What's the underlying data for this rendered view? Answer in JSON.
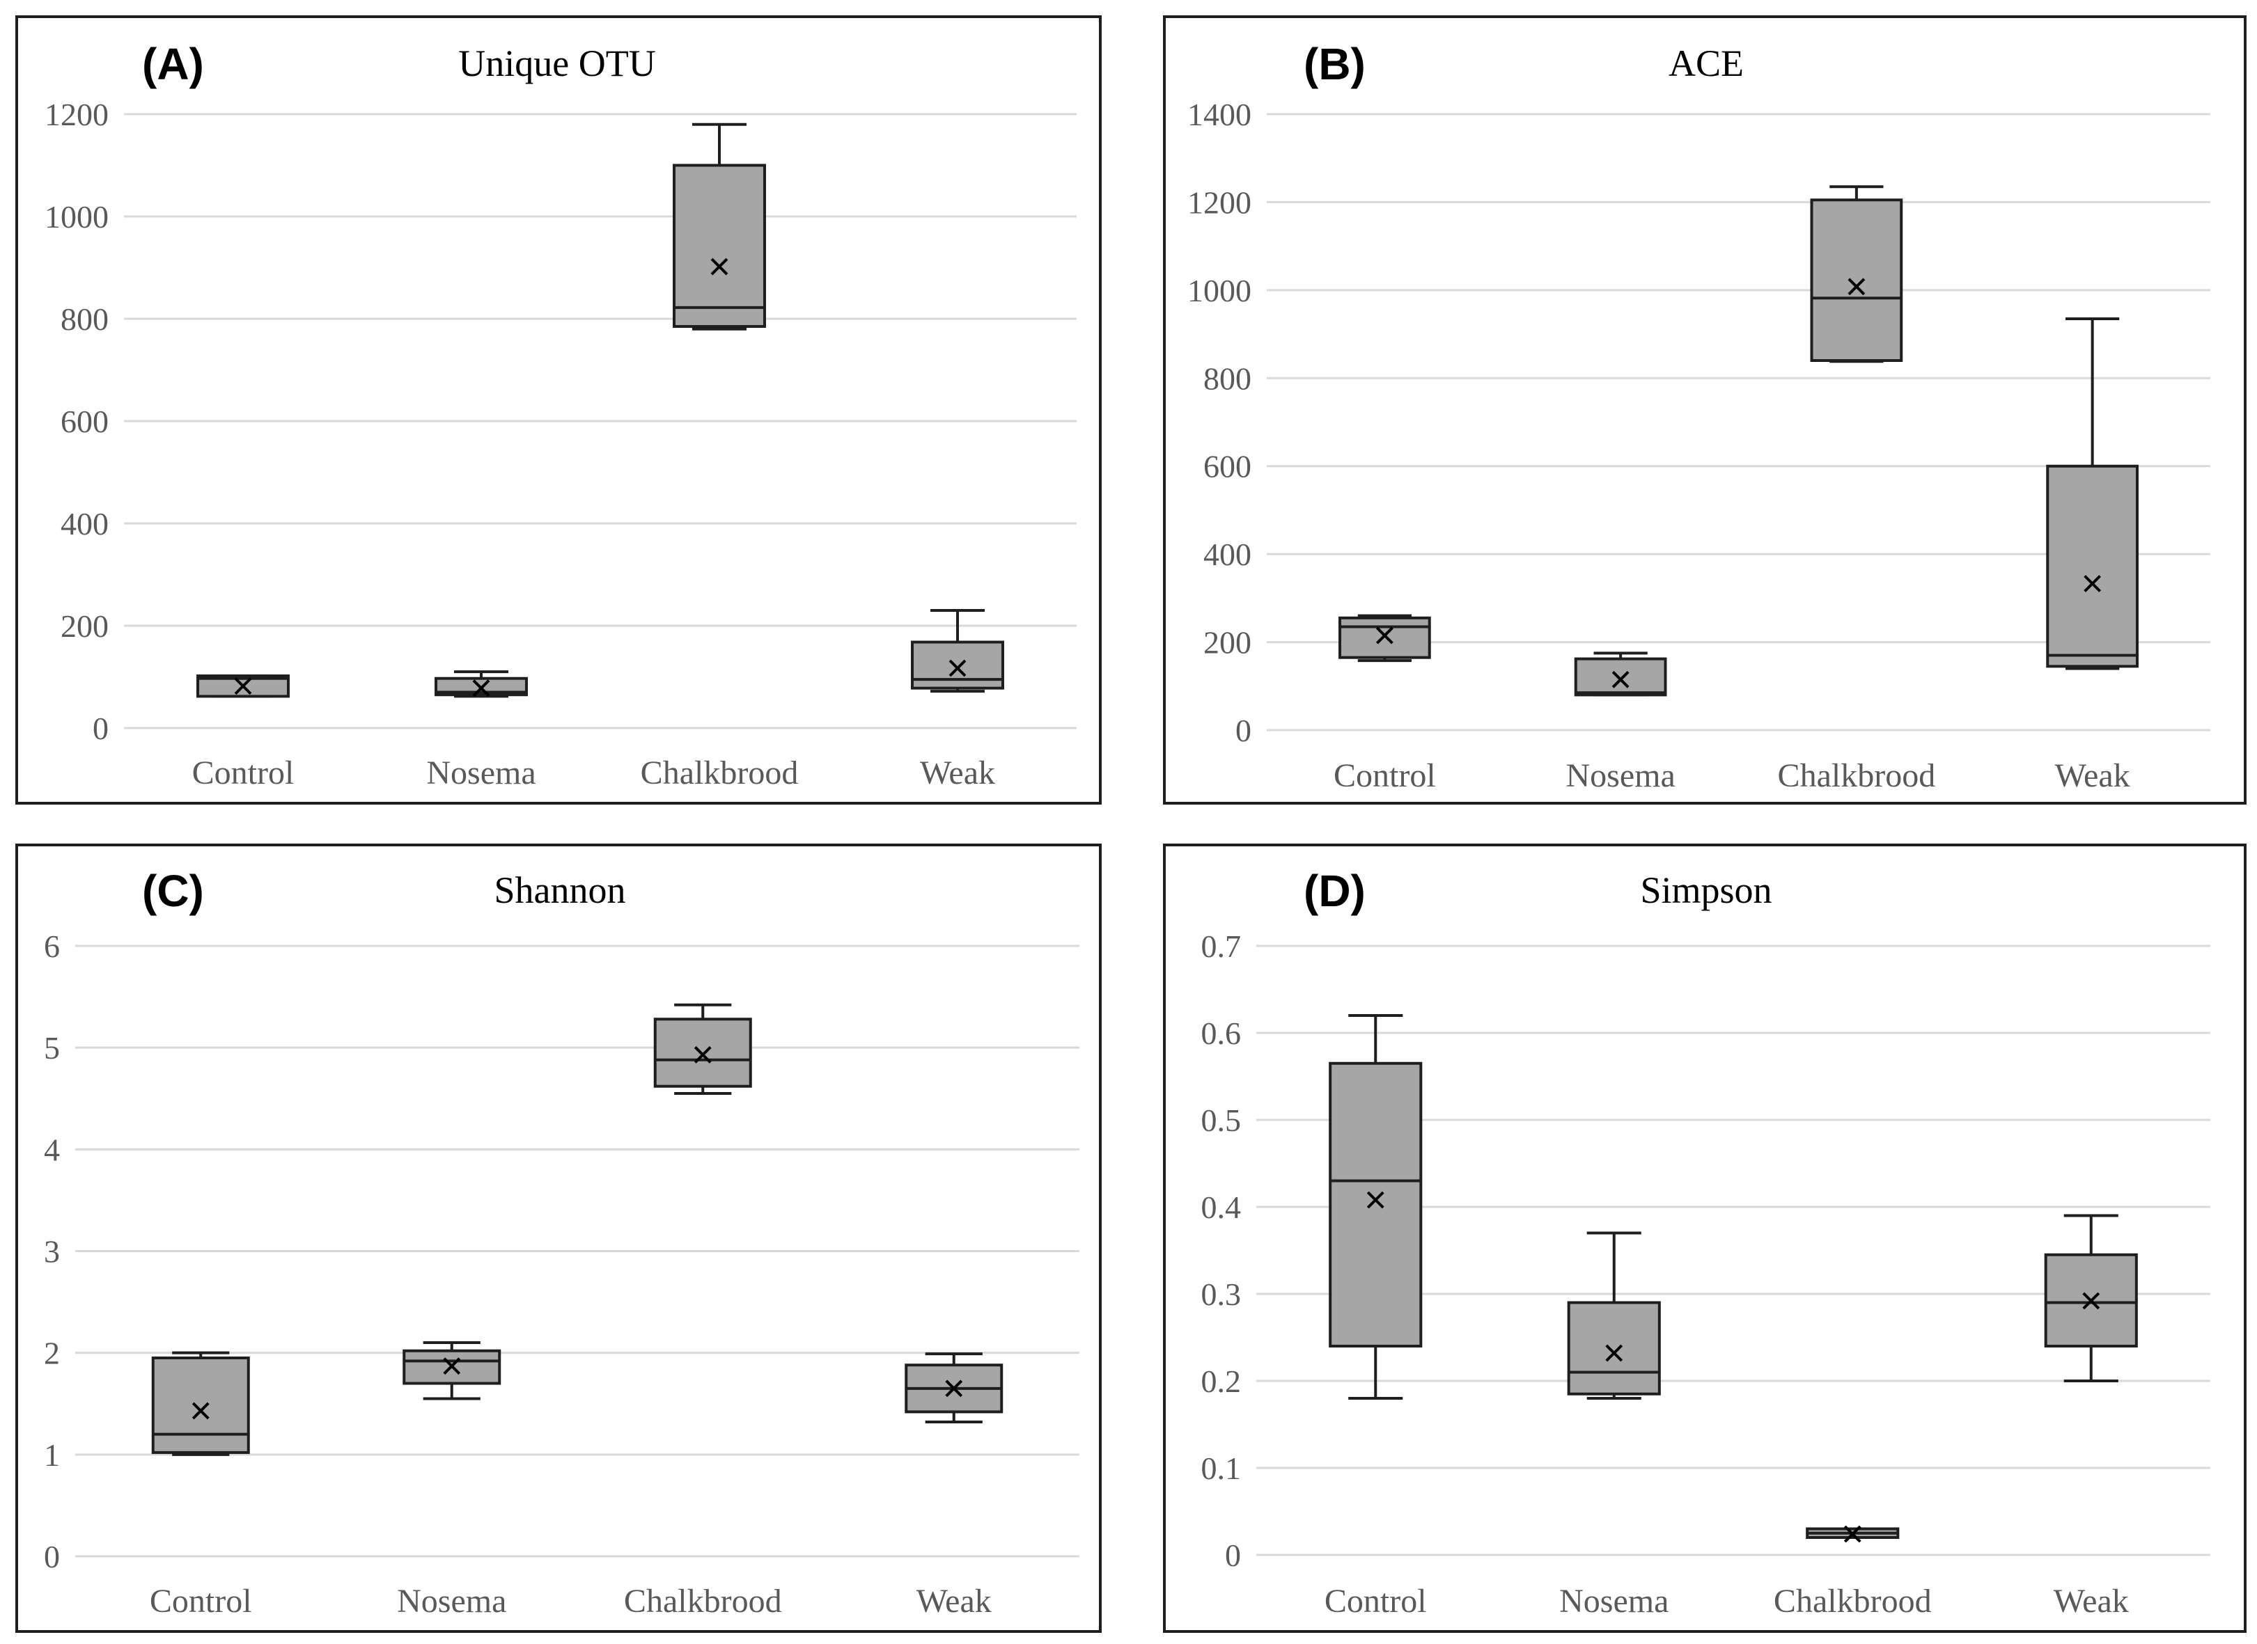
{
  "figure": {
    "colors": {
      "box_fill": "#a6a6a6",
      "box_stroke": "#1e1e1e",
      "grid": "#d9d9d9",
      "tick_text": "#595959",
      "panel_border": "#1e1e1e"
    }
  },
  "chart_data": [
    {
      "panel": "(A)",
      "title": "Unique OTU",
      "type": "box",
      "categories": [
        "Control",
        "Nosema",
        "Chalkbrood",
        "Weak"
      ],
      "ylim": [
        0,
        1200
      ],
      "yticks": [
        0,
        200,
        400,
        600,
        800,
        1000,
        1200
      ],
      "grid": true,
      "boxes": [
        {
          "min": 62,
          "q1": 62,
          "median": 97,
          "q3": 102,
          "max": 102,
          "mean": 82
        },
        {
          "min": 62,
          "q1": 65,
          "median": 70,
          "q3": 97,
          "max": 110,
          "mean": 78
        },
        {
          "min": 780,
          "q1": 785,
          "median": 822,
          "q3": 1100,
          "max": 1180,
          "mean": 902
        },
        {
          "min": 72,
          "q1": 78,
          "median": 95,
          "q3": 168,
          "max": 230,
          "mean": 117
        }
      ]
    },
    {
      "panel": "(B)",
      "title": "ACE",
      "type": "box",
      "categories": [
        "Control",
        "Nosema",
        "Chalkbrood",
        "Weak"
      ],
      "ylim": [
        0,
        1400
      ],
      "yticks": [
        0,
        200,
        400,
        600,
        800,
        1000,
        1200,
        1400
      ],
      "grid": true,
      "boxes": [
        {
          "min": 158,
          "q1": 165,
          "median": 235,
          "q3": 255,
          "max": 260,
          "mean": 215
        },
        {
          "min": 80,
          "q1": 80,
          "median": 85,
          "q3": 162,
          "max": 175,
          "mean": 115
        },
        {
          "min": 838,
          "q1": 840,
          "median": 982,
          "q3": 1205,
          "max": 1235,
          "mean": 1008
        },
        {
          "min": 140,
          "q1": 145,
          "median": 170,
          "q3": 600,
          "max": 935,
          "mean": 333
        }
      ]
    },
    {
      "panel": "(C)",
      "title": "Shannon",
      "type": "box",
      "categories": [
        "Control",
        "Nosema",
        "Chalkbrood",
        "Weak"
      ],
      "ylim": [
        0,
        6
      ],
      "yticks": [
        0,
        1,
        2,
        3,
        4,
        5,
        6
      ],
      "grid": true,
      "boxes": [
        {
          "min": 1.0,
          "q1": 1.02,
          "median": 1.2,
          "q3": 1.95,
          "max": 2.0,
          "mean": 1.43
        },
        {
          "min": 1.55,
          "q1": 1.7,
          "median": 1.92,
          "q3": 2.02,
          "max": 2.1,
          "mean": 1.87
        },
        {
          "min": 4.55,
          "q1": 4.62,
          "median": 4.88,
          "q3": 5.28,
          "max": 5.42,
          "mean": 4.93
        },
        {
          "min": 1.32,
          "q1": 1.42,
          "median": 1.65,
          "q3": 1.88,
          "max": 1.99,
          "mean": 1.65
        }
      ]
    },
    {
      "panel": "(D)",
      "title": "Simpson",
      "type": "box",
      "categories": [
        "Control",
        "Nosema",
        "Chalkbrood",
        "Weak"
      ],
      "ylim": [
        0,
        0.7
      ],
      "yticks": [
        0,
        0.1,
        0.2,
        0.3,
        0.4,
        0.5,
        0.6,
        0.7
      ],
      "grid": true,
      "boxes": [
        {
          "min": 0.18,
          "q1": 0.24,
          "median": 0.43,
          "q3": 0.565,
          "max": 0.62,
          "mean": 0.408
        },
        {
          "min": 0.18,
          "q1": 0.185,
          "median": 0.21,
          "q3": 0.29,
          "max": 0.37,
          "mean": 0.232
        },
        {
          "min": 0.02,
          "q1": 0.02,
          "median": 0.025,
          "q3": 0.03,
          "max": 0.03,
          "mean": 0.024
        },
        {
          "min": 0.2,
          "q1": 0.24,
          "median": 0.29,
          "q3": 0.345,
          "max": 0.39,
          "mean": 0.292
        }
      ]
    }
  ]
}
